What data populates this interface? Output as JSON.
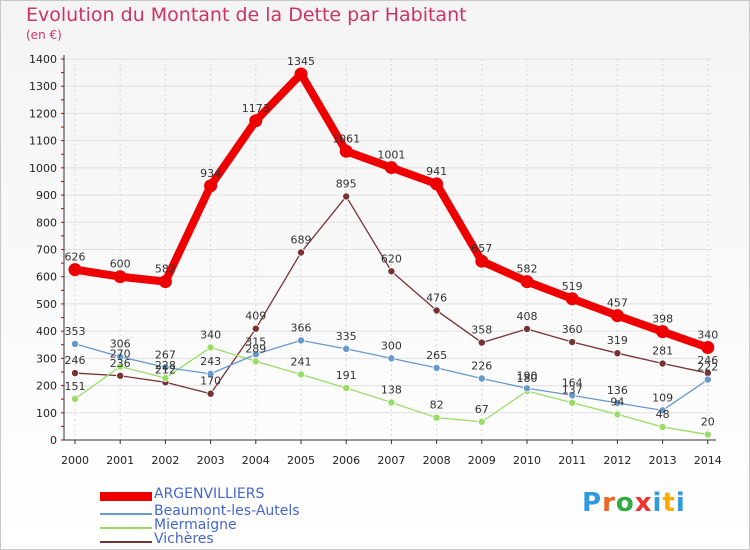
{
  "title": "Evolution du Montant de la Dette par Habitant",
  "subtitle": "(en €)",
  "logo": "Proxiti",
  "chart_data": {
    "type": "line",
    "title": "Evolution du Montant de la Dette par Habitant",
    "ylabel": "(en €)",
    "xlabel": "",
    "x": [
      "2000",
      "2001",
      "2002",
      "2003",
      "2004",
      "2005",
      "2006",
      "2007",
      "2008",
      "2009",
      "2010",
      "2011",
      "2012",
      "2013",
      "2014"
    ],
    "ylim": [
      0,
      1400
    ],
    "yticks": [
      0,
      100,
      200,
      300,
      400,
      500,
      600,
      700,
      800,
      900,
      1000,
      1100,
      1200,
      1300,
      1400
    ],
    "series": [
      {
        "name": "ARGENVILLIERS",
        "color": "#ee0000",
        "values": [
          626,
          600,
          582,
          934,
          1173,
          1345,
          1061,
          1001,
          941,
          657,
          582,
          519,
          457,
          398,
          340
        ]
      },
      {
        "name": "Beaumont-les-Autels",
        "color": "#6699cc",
        "values": [
          353,
          306,
          267,
          243,
          315,
          366,
          335,
          300,
          265,
          226,
          190,
          164,
          136,
          109,
          222
        ]
      },
      {
        "name": "Miermaigne",
        "color": "#99dd66",
        "values": [
          151,
          270,
          228,
          340,
          289,
          241,
          191,
          138,
          82,
          67,
          180,
          137,
          94,
          48,
          20
        ]
      },
      {
        "name": "Vichères",
        "color": "#773333",
        "values": [
          246,
          236,
          212,
          170,
          409,
          689,
          895,
          620,
          476,
          358,
          408,
          360,
          319,
          281,
          246
        ]
      }
    ]
  }
}
